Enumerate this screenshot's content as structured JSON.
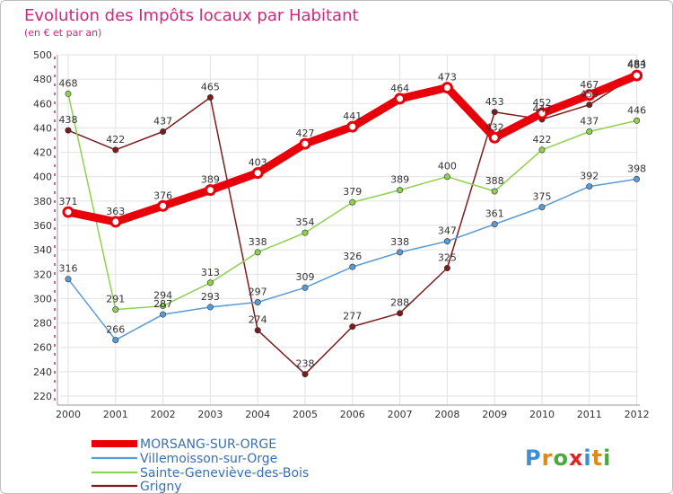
{
  "chart_data": {
    "type": "line",
    "title": "Evolution des Impôts locaux par Habitant",
    "subtitle": "(en € et par an)",
    "xlabel": "",
    "ylabel": "",
    "categories": [
      "2000",
      "2001",
      "2002",
      "2003",
      "2004",
      "2005",
      "2006",
      "2007",
      "2008",
      "2009",
      "2010",
      "2011",
      "2012"
    ],
    "ylim": [
      220,
      500
    ],
    "yticks": [
      220,
      240,
      260,
      280,
      300,
      320,
      340,
      360,
      380,
      400,
      420,
      440,
      460,
      480,
      500
    ],
    "grid": true,
    "legend_position": "bottom-left",
    "series": [
      {
        "name": "MORSANG-SUR-ORGE",
        "color": "#e8000b",
        "values": [
          371,
          363,
          376,
          389,
          403,
          427,
          441,
          464,
          473,
          432,
          452,
          467,
          483
        ]
      },
      {
        "name": "Villemoisson-sur-Orge",
        "color": "#5b9bd5",
        "values": [
          316,
          266,
          287,
          293,
          297,
          309,
          326,
          338,
          347,
          361,
          375,
          392,
          398
        ]
      },
      {
        "name": "Sainte-Geneviève-des-Bois",
        "color": "#8fd14f",
        "values": [
          468,
          291,
          294,
          313,
          338,
          354,
          379,
          389,
          400,
          388,
          422,
          437,
          446
        ]
      },
      {
        "name": "Grigny",
        "color": "#7b1d1d",
        "values": [
          438,
          422,
          437,
          465,
          274,
          238,
          277,
          288,
          325,
          453,
          447,
          459,
          484
        ]
      }
    ]
  },
  "branding": {
    "logo_text": "Proxiti"
  }
}
